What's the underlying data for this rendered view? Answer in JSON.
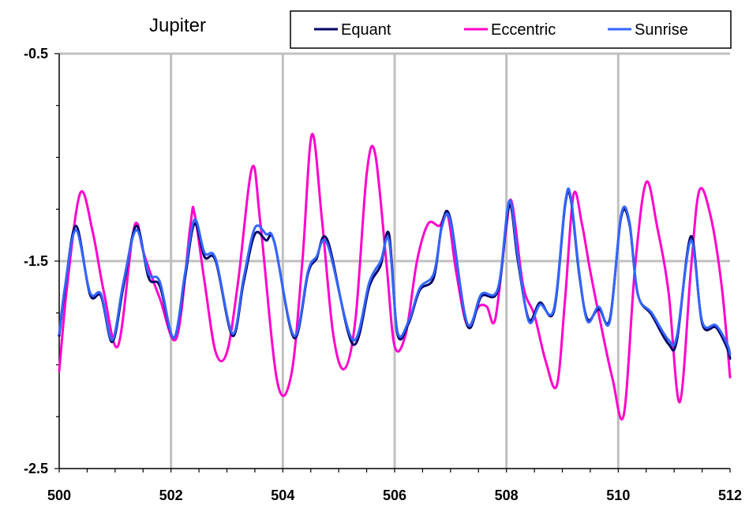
{
  "chart_data": {
    "type": "line",
    "title": "Jupiter",
    "xlabel": "",
    "ylabel": "",
    "xlim": [
      500,
      512
    ],
    "ylim": [
      -2.5,
      -0.5
    ],
    "xticks": [
      500,
      502,
      504,
      506,
      508,
      510,
      512
    ],
    "xtick_labels": [
      "500",
      "502",
      "504",
      "506",
      "508",
      "510",
      "512"
    ],
    "yticks": [
      -2.5,
      -1.5,
      -0.5
    ],
    "ytick_labels": [
      "-2.5",
      "-1.5",
      "-0.5"
    ],
    "grid": true,
    "legend_position": "top-right",
    "series": [
      {
        "name": "Equant",
        "color": "#000066",
        "x": [
          500.0,
          500.1,
          500.3,
          500.55,
          500.75,
          500.95,
          501.15,
          501.38,
          501.6,
          501.8,
          502.05,
          502.25,
          502.42,
          502.6,
          502.8,
          503.1,
          503.3,
          503.5,
          503.7,
          503.85,
          504.2,
          504.45,
          504.6,
          504.8,
          505.25,
          505.55,
          505.75,
          505.9,
          506.05,
          506.25,
          506.45,
          506.7,
          506.85,
          507.0,
          507.3,
          507.55,
          507.85,
          508.05,
          508.2,
          508.4,
          508.6,
          508.85,
          509.05,
          509.15,
          509.3,
          509.45,
          509.65,
          509.85,
          510.05,
          510.2,
          510.35,
          510.6,
          510.9,
          511.05,
          511.3,
          511.5,
          511.75,
          511.95,
          512.0
        ],
        "y": [
          -1.86,
          -1.64,
          -1.33,
          -1.66,
          -1.67,
          -1.89,
          -1.62,
          -1.33,
          -1.58,
          -1.62,
          -1.87,
          -1.58,
          -1.32,
          -1.48,
          -1.5,
          -1.86,
          -1.6,
          -1.37,
          -1.4,
          -1.41,
          -1.87,
          -1.56,
          -1.49,
          -1.4,
          -1.9,
          -1.62,
          -1.52,
          -1.37,
          -1.85,
          -1.8,
          -1.64,
          -1.58,
          -1.32,
          -1.3,
          -1.81,
          -1.67,
          -1.64,
          -1.23,
          -1.49,
          -1.78,
          -1.7,
          -1.74,
          -1.23,
          -1.2,
          -1.56,
          -1.78,
          -1.73,
          -1.78,
          -1.29,
          -1.32,
          -1.66,
          -1.76,
          -1.9,
          -1.88,
          -1.38,
          -1.8,
          -1.82,
          -1.92,
          -1.97
        ]
      },
      {
        "name": "Eccentric",
        "color": "#ff00cc",
        "x": [
          500.0,
          500.15,
          500.38,
          500.6,
          500.8,
          501.05,
          501.3,
          501.4,
          501.5,
          501.8,
          502.1,
          502.35,
          502.42,
          502.6,
          502.8,
          503.0,
          503.2,
          503.45,
          503.6,
          503.9,
          504.15,
          504.35,
          504.52,
          504.7,
          504.9,
          505.1,
          505.3,
          505.5,
          505.65,
          505.85,
          506.0,
          506.2,
          506.4,
          506.6,
          506.8,
          506.95,
          507.1,
          507.3,
          507.5,
          507.65,
          507.8,
          508.0,
          508.1,
          508.3,
          508.5,
          508.7,
          508.9,
          509.05,
          509.2,
          509.35,
          509.5,
          509.7,
          509.9,
          510.1,
          510.3,
          510.5,
          510.7,
          510.9,
          511.1,
          511.3,
          511.45,
          511.65,
          511.85,
          512.0
        ],
        "y": [
          -2.03,
          -1.6,
          -1.17,
          -1.36,
          -1.65,
          -1.91,
          -1.4,
          -1.32,
          -1.45,
          -1.68,
          -1.87,
          -1.32,
          -1.27,
          -1.6,
          -1.94,
          -1.94,
          -1.6,
          -1.05,
          -1.32,
          -2.08,
          -2.05,
          -1.5,
          -0.89,
          -1.3,
          -1.85,
          -2.02,
          -1.78,
          -1.08,
          -0.98,
          -1.5,
          -1.91,
          -1.85,
          -1.5,
          -1.32,
          -1.33,
          -1.28,
          -1.55,
          -1.81,
          -1.72,
          -1.72,
          -1.78,
          -1.33,
          -1.22,
          -1.62,
          -1.76,
          -1.98,
          -2.1,
          -1.68,
          -1.18,
          -1.32,
          -1.55,
          -1.82,
          -2.07,
          -2.24,
          -1.53,
          -1.12,
          -1.34,
          -1.65,
          -2.18,
          -1.54,
          -1.16,
          -1.28,
          -1.62,
          -2.06
        ]
      },
      {
        "name": "Sunrise",
        "color": "#3366ff",
        "x": [
          500.0,
          500.1,
          500.3,
          500.55,
          500.75,
          500.95,
          501.15,
          501.38,
          501.6,
          501.8,
          502.05,
          502.25,
          502.42,
          502.6,
          502.8,
          503.1,
          503.3,
          503.5,
          503.7,
          503.85,
          504.2,
          504.45,
          504.6,
          504.8,
          505.25,
          505.55,
          505.75,
          505.9,
          506.05,
          506.25,
          506.45,
          506.7,
          506.85,
          507.0,
          507.3,
          507.55,
          507.85,
          508.05,
          508.2,
          508.4,
          508.6,
          508.85,
          509.05,
          509.15,
          509.3,
          509.45,
          509.65,
          509.85,
          510.05,
          510.2,
          510.35,
          510.6,
          510.9,
          511.05,
          511.3,
          511.5,
          511.75,
          511.95,
          512.0
        ],
        "y": [
          -1.85,
          -1.63,
          -1.35,
          -1.65,
          -1.66,
          -1.88,
          -1.6,
          -1.35,
          -1.56,
          -1.6,
          -1.87,
          -1.56,
          -1.3,
          -1.46,
          -1.49,
          -1.85,
          -1.58,
          -1.34,
          -1.37,
          -1.41,
          -1.86,
          -1.55,
          -1.48,
          -1.42,
          -1.88,
          -1.6,
          -1.5,
          -1.4,
          -1.84,
          -1.79,
          -1.63,
          -1.56,
          -1.33,
          -1.31,
          -1.8,
          -1.66,
          -1.63,
          -1.21,
          -1.47,
          -1.79,
          -1.71,
          -1.73,
          -1.22,
          -1.19,
          -1.55,
          -1.79,
          -1.72,
          -1.79,
          -1.28,
          -1.31,
          -1.66,
          -1.75,
          -1.88,
          -1.86,
          -1.4,
          -1.79,
          -1.81,
          -1.9,
          -1.95
        ]
      }
    ]
  }
}
